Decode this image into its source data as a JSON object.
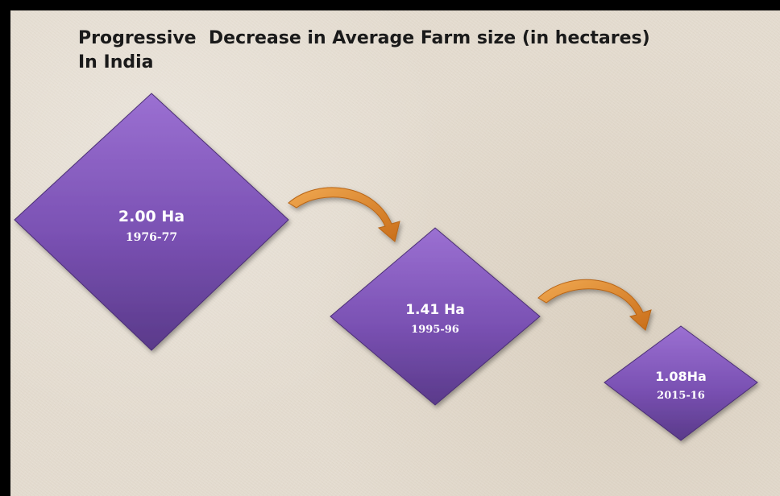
{
  "title": {
    "line1": "Progressive  Decrease in Average Farm size (in hectares)",
    "line2": "In India"
  },
  "steps": [
    {
      "value": "2.00 Ha",
      "period": "1976-77"
    },
    {
      "value": "1.41 Ha",
      "period": "1995-96"
    },
    {
      "value": "1.08Ha",
      "period": "2015-16"
    }
  ],
  "colors": {
    "diamond_top": "#8e63c4",
    "diamond_bottom": "#5c3a8f",
    "arrow": "#e08a2c",
    "background": "#e4dcd0"
  },
  "icons": [
    "curved-arrow-icon",
    "curved-arrow-icon"
  ]
}
